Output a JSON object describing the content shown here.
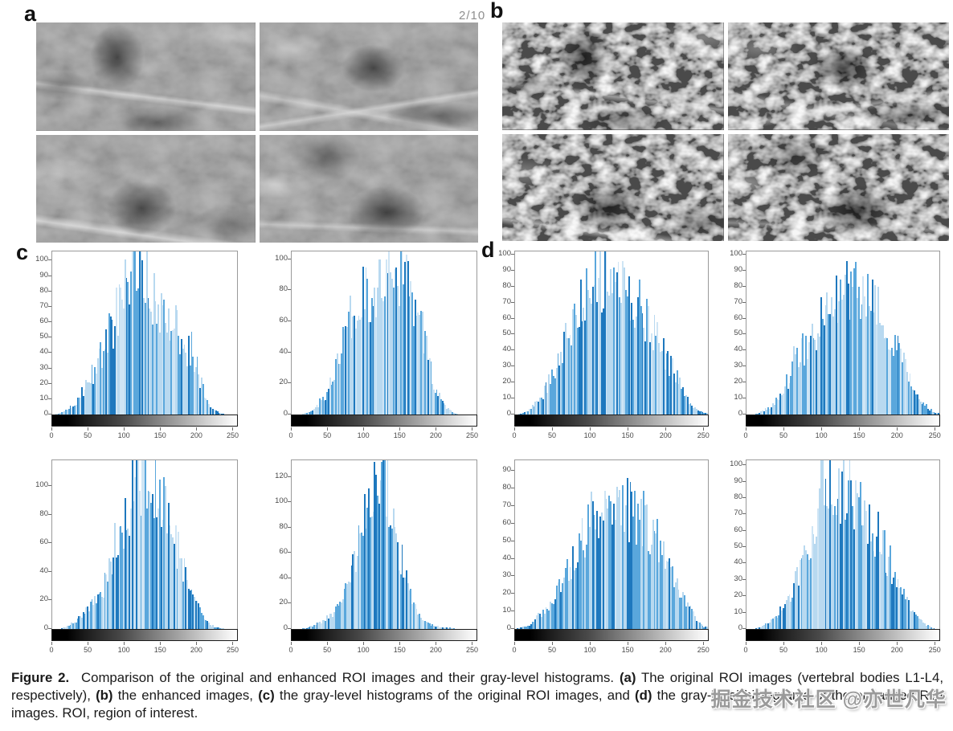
{
  "page_indicator": "2/10",
  "panels": {
    "a": {
      "label": "a",
      "images": [
        "roi-l1-original",
        "roi-l2-original",
        "roi-l3-original",
        "roi-l4-original"
      ]
    },
    "b": {
      "label": "b",
      "images": [
        "roi-l1-enhanced",
        "roi-l2-enhanced",
        "roi-l3-enhanced",
        "roi-l4-enhanced"
      ]
    },
    "c": {
      "label": "c"
    },
    "d": {
      "label": "d"
    }
  },
  "caption": {
    "segments": [
      {
        "text": "Figure 2.",
        "bold": true
      },
      {
        "text": " Comparison of the original and enhanced ROI images and their gray-level histograms. ",
        "bold": false
      },
      {
        "text": "(a)",
        "bold": true
      },
      {
        "text": " The original ROI images (vertebral bodies L1-L4, respectively), ",
        "bold": false
      },
      {
        "text": "(b)",
        "bold": true
      },
      {
        "text": " the enhanced images, ",
        "bold": false
      },
      {
        "text": "(c)",
        "bold": true
      },
      {
        "text": " the gray-level histograms of the original ROI images, and ",
        "bold": false
      },
      {
        "text": "(d)",
        "bold": true
      },
      {
        "text": " the gray-level histograms of the enhanced ROI images. ROI, region of interest.",
        "bold": false
      }
    ]
  },
  "watermark": "掘金技术社区 @亦世凡华",
  "colors": {
    "bar_light": "#b8d9f0",
    "bar_pale": "#cfe5f5",
    "bar_mid": "#5aa7dc",
    "bar_deep": "#1e78be",
    "axis_box": "#9a9a9a",
    "tick_text": "#4a4a4a",
    "colorbar": "black-to-white gradient"
  },
  "chart_data": [
    {
      "id": "c1",
      "panel": "c",
      "position": "top-left",
      "type": "bar",
      "title": "",
      "xlabel": "",
      "ylabel": "",
      "xlim": [
        0,
        255
      ],
      "x_ticks": [
        0,
        50,
        100,
        150,
        200,
        250
      ],
      "ylim": [
        0,
        106
      ],
      "y_ticks": [
        0,
        10,
        20,
        30,
        40,
        50,
        60,
        70,
        80,
        90,
        100
      ],
      "envelope_x_step": 10,
      "envelope": [
        0,
        1,
        3,
        7,
        14,
        22,
        30,
        42,
        55,
        65,
        80,
        105,
        88,
        82,
        74,
        70,
        62,
        58,
        47,
        40,
        30,
        12,
        4,
        1,
        0,
        0
      ],
      "colorbar": "gray-level 0-255"
    },
    {
      "id": "c2",
      "panel": "c",
      "position": "top-right",
      "type": "bar",
      "title": "",
      "xlabel": "",
      "ylabel": "",
      "xlim": [
        0,
        255
      ],
      "x_ticks": [
        0,
        50,
        100,
        150,
        200,
        250
      ],
      "ylim": [
        0,
        105
      ],
      "y_ticks": [
        0,
        20,
        40,
        60,
        80,
        100
      ],
      "envelope_x_step": 10,
      "envelope": [
        0,
        0,
        1,
        3,
        8,
        16,
        30,
        45,
        60,
        70,
        76,
        80,
        83,
        88,
        84,
        89,
        80,
        68,
        52,
        32,
        15,
        6,
        2,
        0,
        0,
        0
      ],
      "colorbar": "gray-level 0-255"
    },
    {
      "id": "c3",
      "panel": "c",
      "position": "bottom-left",
      "type": "bar",
      "title": "",
      "xlabel": "",
      "ylabel": "",
      "xlim": [
        0,
        255
      ],
      "x_ticks": [
        0,
        50,
        100,
        150,
        200,
        250
      ],
      "ylim": [
        0,
        118
      ],
      "y_ticks": [
        0,
        20,
        40,
        60,
        80,
        100
      ],
      "envelope_x_step": 10,
      "envelope": [
        0,
        0,
        2,
        5,
        10,
        15,
        22,
        30,
        42,
        58,
        76,
        92,
        108,
        115,
        98,
        92,
        78,
        60,
        44,
        30,
        16,
        7,
        2,
        1,
        0,
        0
      ],
      "colorbar": "gray-level 0-255"
    },
    {
      "id": "c4",
      "panel": "c",
      "position": "bottom-right",
      "type": "bar",
      "title": "",
      "xlabel": "",
      "ylabel": "",
      "xlim": [
        0,
        255
      ],
      "x_ticks": [
        0,
        50,
        100,
        150,
        200,
        250
      ],
      "ylim": [
        0,
        133
      ],
      "y_ticks": [
        0,
        20,
        40,
        60,
        80,
        100,
        120
      ],
      "envelope_x_step": 10,
      "envelope": [
        0,
        0,
        1,
        3,
        6,
        10,
        14,
        22,
        38,
        62,
        92,
        118,
        130,
        118,
        88,
        58,
        32,
        16,
        8,
        4,
        2,
        1,
        1,
        0,
        0,
        0
      ],
      "colorbar": "gray-level 0-255"
    },
    {
      "id": "d1",
      "panel": "d",
      "position": "top-left",
      "type": "bar",
      "title": "",
      "xlabel": "",
      "ylabel": "",
      "xlim": [
        0,
        255
      ],
      "x_ticks": [
        0,
        50,
        100,
        150,
        200,
        250
      ],
      "ylim": [
        0,
        102
      ],
      "y_ticks": [
        0,
        10,
        20,
        30,
        40,
        50,
        60,
        70,
        80,
        90,
        100
      ],
      "envelope_x_step": 10,
      "envelope": [
        0,
        1,
        4,
        8,
        16,
        26,
        40,
        52,
        62,
        74,
        82,
        90,
        84,
        80,
        82,
        78,
        70,
        62,
        55,
        46,
        36,
        26,
        16,
        8,
        3,
        1
      ],
      "colorbar": "gray-level 0-255"
    },
    {
      "id": "d2",
      "panel": "d",
      "position": "top-right",
      "type": "bar",
      "title": "",
      "xlabel": "",
      "ylabel": "",
      "xlim": [
        0,
        255
      ],
      "x_ticks": [
        0,
        50,
        100,
        150,
        200,
        250
      ],
      "ylim": [
        0,
        102
      ],
      "y_ticks": [
        0,
        10,
        20,
        30,
        40,
        50,
        60,
        70,
        80,
        90,
        100
      ],
      "envelope_x_step": 10,
      "envelope": [
        0,
        0,
        2,
        5,
        10,
        18,
        28,
        36,
        46,
        52,
        62,
        66,
        70,
        74,
        81,
        72,
        76,
        70,
        60,
        50,
        40,
        28,
        16,
        9,
        4,
        1
      ],
      "colorbar": "gray-level 0-255"
    },
    {
      "id": "d3",
      "panel": "d",
      "position": "bottom-left",
      "type": "bar",
      "title": "",
      "xlabel": "",
      "ylabel": "",
      "xlim": [
        0,
        255
      ],
      "x_ticks": [
        0,
        50,
        100,
        150,
        200,
        250
      ],
      "ylim": [
        0,
        96
      ],
      "y_ticks": [
        0,
        10,
        20,
        30,
        40,
        50,
        60,
        70,
        80,
        90
      ],
      "envelope_x_step": 10,
      "envelope": [
        0,
        1,
        3,
        7,
        12,
        18,
        26,
        34,
        42,
        52,
        62,
        72,
        76,
        70,
        66,
        68,
        66,
        62,
        56,
        48,
        42,
        30,
        20,
        12,
        5,
        1
      ],
      "colorbar": "gray-level 0-255"
    },
    {
      "id": "d4",
      "panel": "d",
      "position": "bottom-right",
      "type": "bar",
      "title": "",
      "xlabel": "",
      "ylabel": "",
      "xlim": [
        0,
        255
      ],
      "x_ticks": [
        0,
        50,
        100,
        150,
        200,
        250
      ],
      "ylim": [
        0,
        103
      ],
      "y_ticks": [
        0,
        10,
        20,
        30,
        40,
        50,
        60,
        70,
        80,
        90,
        100
      ],
      "envelope_x_step": 10,
      "envelope": [
        0,
        0,
        2,
        5,
        9,
        15,
        24,
        34,
        46,
        56,
        99,
        86,
        82,
        88,
        80,
        78,
        70,
        60,
        50,
        40,
        28,
        18,
        10,
        5,
        2,
        0
      ],
      "colorbar": "gray-level 0-255"
    }
  ]
}
